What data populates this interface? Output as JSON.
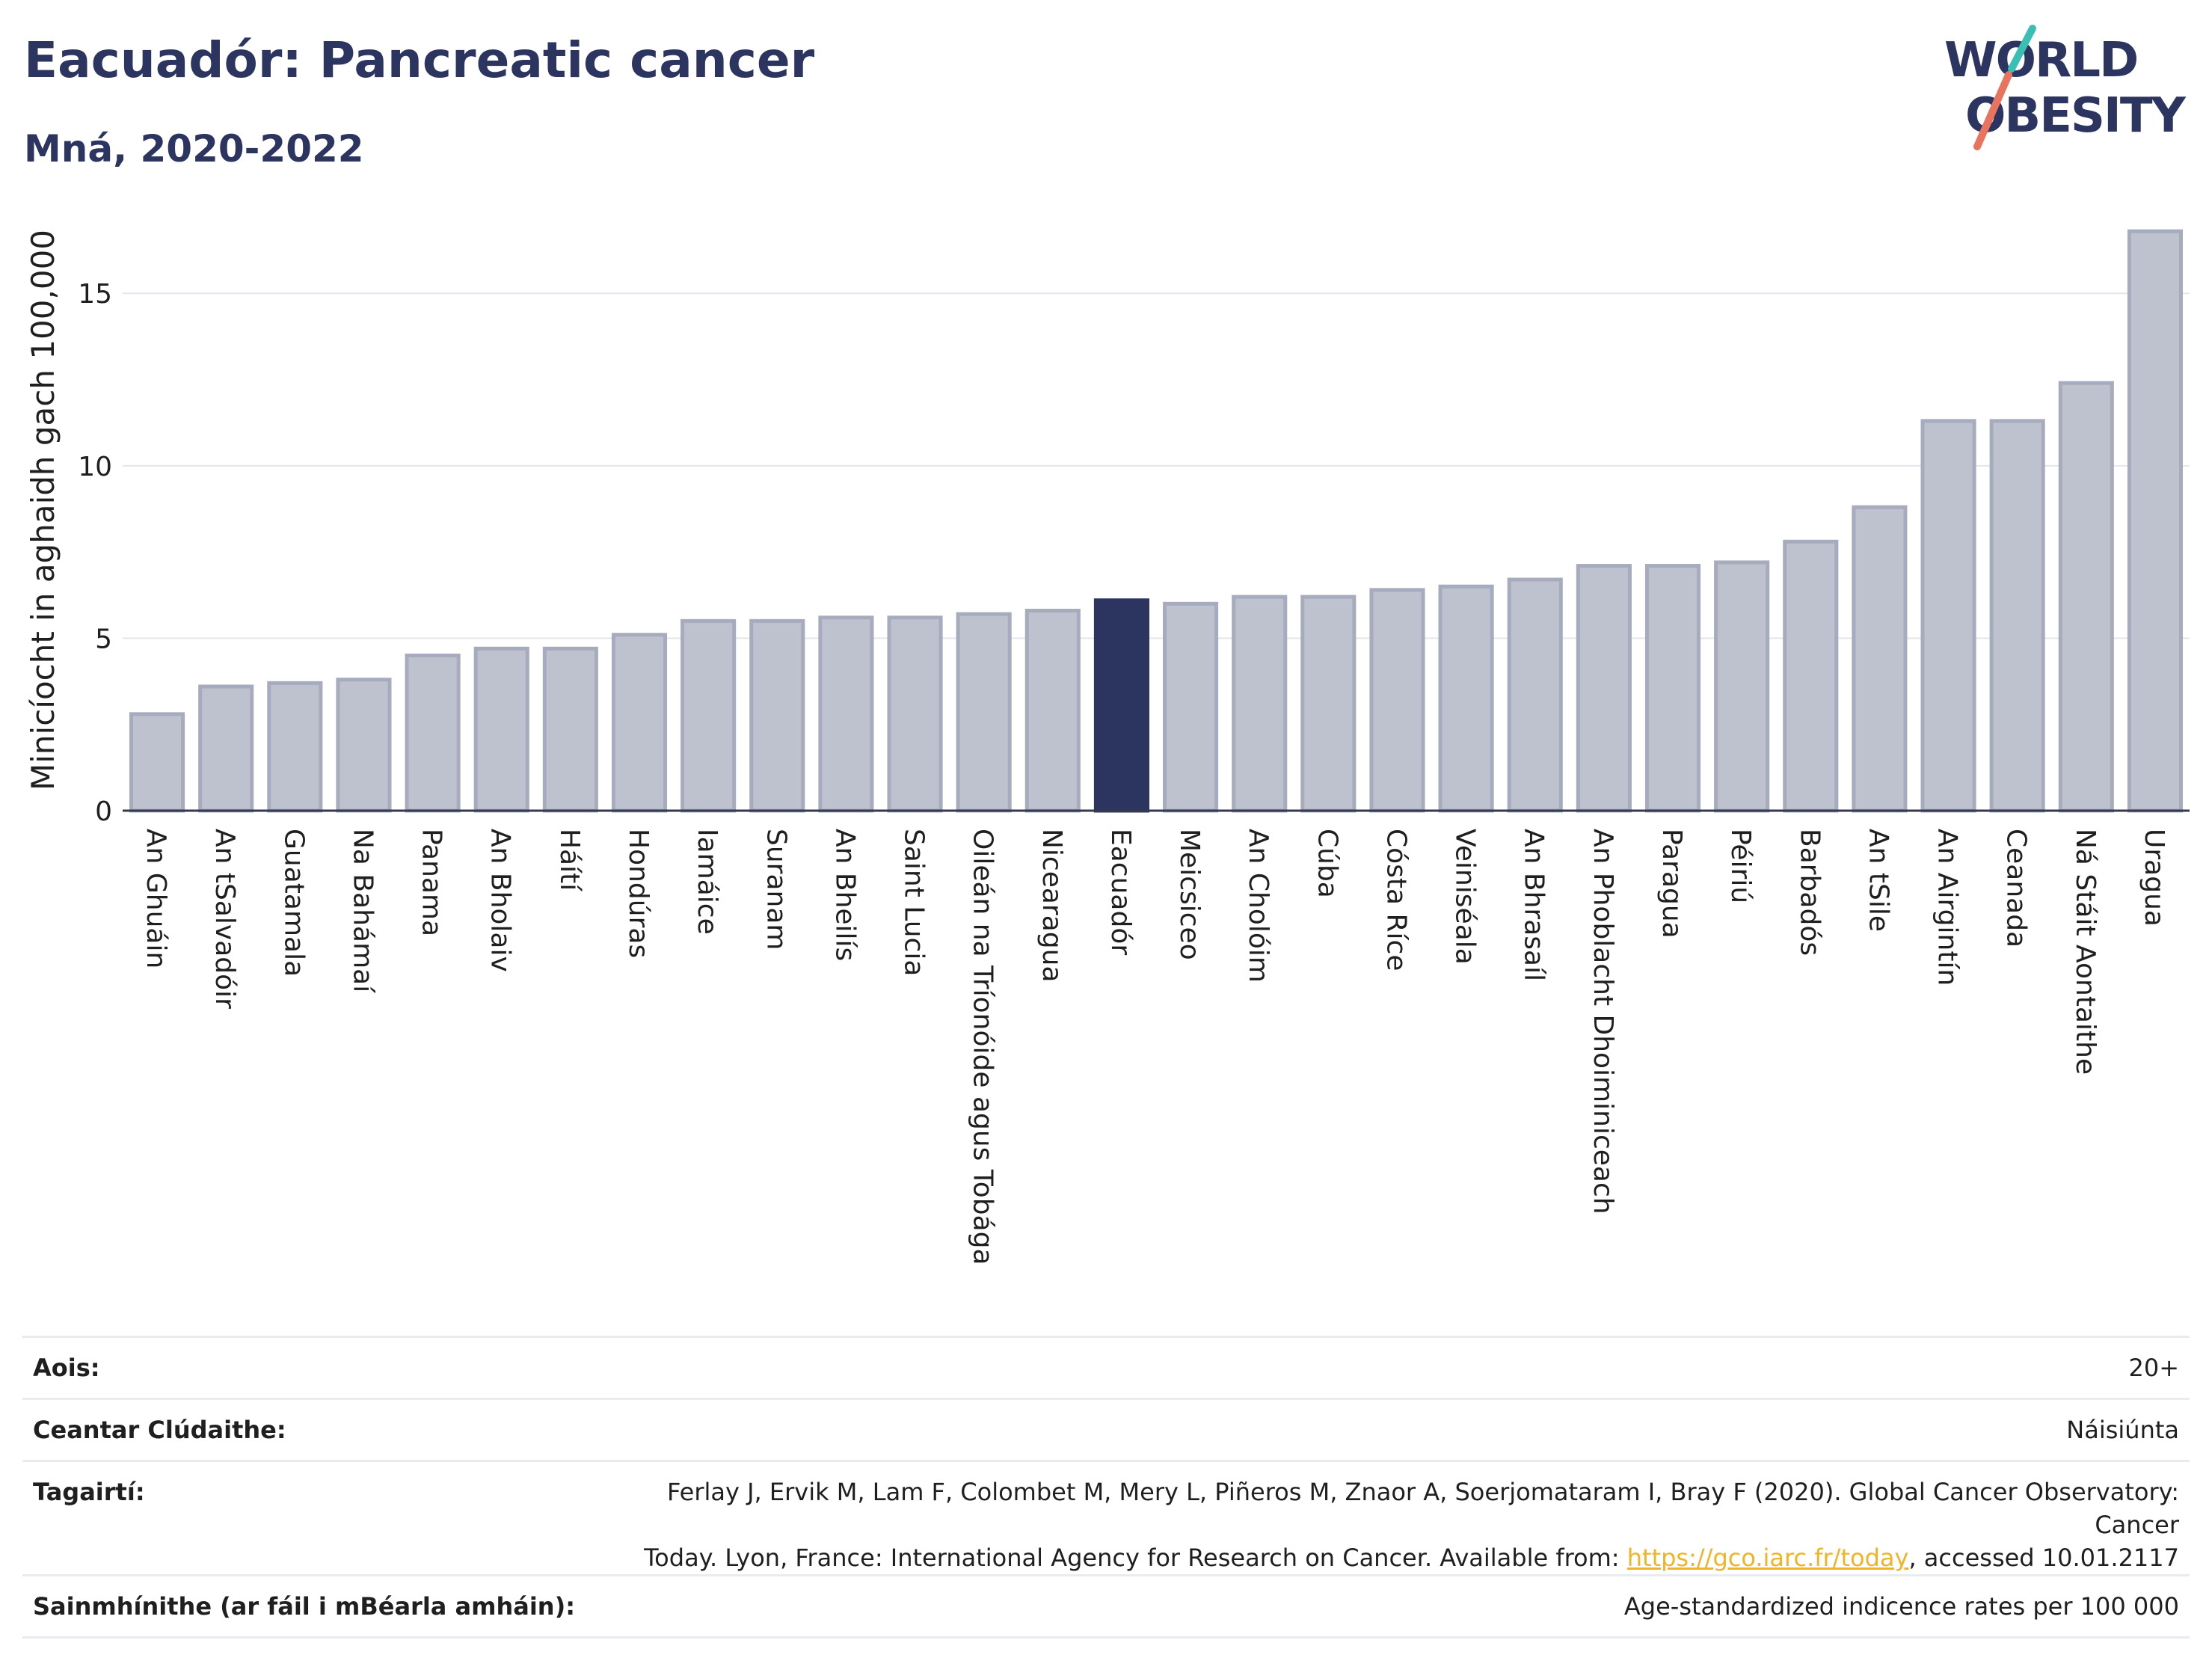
{
  "header": {
    "title": "Eacuadór: Pancreatic cancer",
    "subtitle": "Mná, 2020-2022"
  },
  "logo": {
    "line1": "WORLD",
    "line2": "OBESITY",
    "colors": {
      "text": "#2c3560",
      "slash_teal": "#3bbfb5",
      "slash_coral": "#e8735f"
    }
  },
  "chart_data": {
    "type": "bar",
    "title": "",
    "xlabel": "",
    "ylabel": "Minicíocht in aghaidh gach 100,000",
    "ylim": [
      0,
      17
    ],
    "yticks": [
      0,
      5,
      10,
      15
    ],
    "grid": true,
    "highlight": "Eacuadór",
    "colors": {
      "bar": "#bec2cf",
      "bar_border": "#a6abbe",
      "highlight": "#2c3560",
      "grid": "#e4e6eb"
    },
    "categories": [
      "An Ghuáin",
      "An tSalvadóir",
      "Guatamala",
      "Na Bahámaí",
      "Panama",
      "An Bholaiv",
      "Háítí",
      "Hondúras",
      "Iamáice",
      "Suranam",
      "An Bheilís",
      "Saint Lucia",
      "Oileán na Tríonóide agus Tobága",
      "Nicearagua",
      "Eacuadór",
      "Meicsiceo",
      "An Cholóim",
      "Cúba",
      "Cósta Ríce",
      "Veiniséala",
      "An Bhrasaíl",
      "An Phoblacht Dhoiminiceach",
      "Paragua",
      "Péiriú",
      "Barbadós",
      "An tSile",
      "An Airgintín",
      "Ceanada",
      "Ná Stáit Aontaithe",
      "Uragua"
    ],
    "values": [
      2.8,
      3.6,
      3.7,
      3.8,
      4.5,
      4.7,
      4.7,
      5.1,
      5.5,
      5.5,
      5.6,
      5.6,
      5.7,
      5.8,
      6.1,
      6.0,
      6.2,
      6.2,
      6.4,
      6.5,
      6.7,
      7.1,
      7.1,
      7.2,
      7.8,
      8.8,
      11.3,
      11.3,
      12.4,
      16.8
    ]
  },
  "info": {
    "age_label": "Aois:",
    "age_value": "20+",
    "coverage_label": "Ceantar Clúdaithe:",
    "coverage_value": "Náisiúnta",
    "refs_label": "Tagairtí:",
    "refs_line1": "Ferlay J, Ervik M, Lam F, Colombet M, Mery L, Piñeros M, Znaor A, Soerjomataram I, Bray F (2020). Global Cancer Observatory: Cancer",
    "refs_line2a": "Today. Lyon, France: International Agency for Research on Cancer. Available from: ",
    "refs_link": "https://gco.iarc.fr/today",
    "refs_line2b": ", accessed 10.01.2117",
    "defs_label": "Sainmhínithe (ar fáil i mBéarla amháin):",
    "defs_value": "Age-standardized indicence rates per 100 000"
  }
}
